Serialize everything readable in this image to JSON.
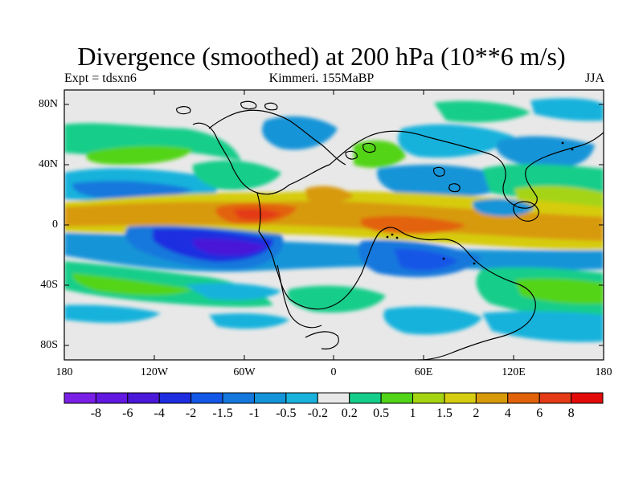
{
  "title": "Divergence (smoothed) at 200 hPa (10**6 m/s)",
  "experiment": "Expt = tdsxn6",
  "period_label": "Kimmeri. 155MaBP",
  "season": "JJA",
  "lat_labels": [
    "80N",
    "40N",
    "0",
    "40S",
    "80S"
  ],
  "lon_labels": [
    "180",
    "120W",
    "60W",
    "0",
    "60E",
    "120E",
    "180"
  ],
  "colorbar": {
    "labels": [
      "-8",
      "-6",
      "-4",
      "-2",
      "-1.5",
      "-1",
      "-0.5",
      "-0.2",
      "0.2",
      "0.5",
      "1",
      "1.5",
      "2",
      "4",
      "6",
      "8"
    ],
    "colors": [
      "#7a1fe6",
      "#6218e0",
      "#4a18d8",
      "#1f2de0",
      "#1257e6",
      "#1478dc",
      "#1494d8",
      "#18b2dc",
      "#e8e8e8",
      "#15cd8a",
      "#52d418",
      "#a5d412",
      "#d6cc10",
      "#d89a0a",
      "#e2620a",
      "#e43a16",
      "#e30a0a"
    ]
  },
  "colors": {
    "land_outline": "#000000",
    "background": "#e8e8e8"
  }
}
